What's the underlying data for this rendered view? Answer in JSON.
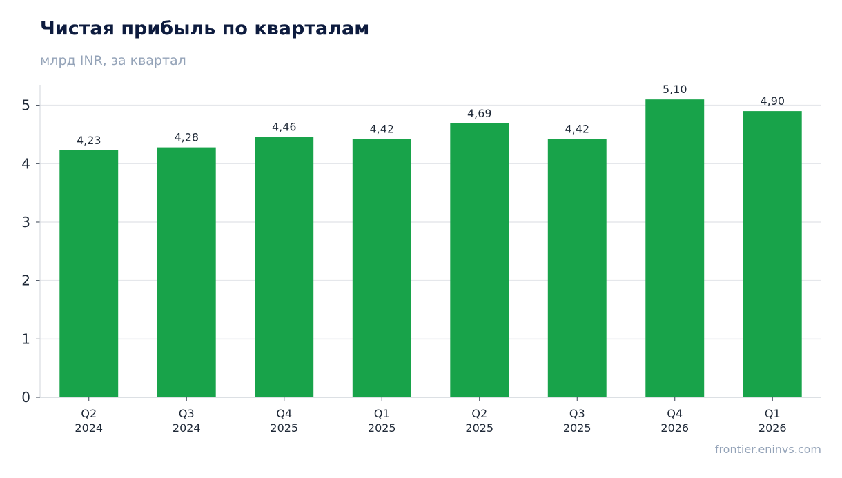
{
  "chart_data": {
    "type": "bar",
    "title": "Чистая прибыль по кварталам",
    "subtitle": "млрд INR, за квартал",
    "xlabel": "",
    "ylabel": "",
    "categories": [
      [
        "Q2",
        "2024"
      ],
      [
        "Q3",
        "2024"
      ],
      [
        "Q4",
        "2025"
      ],
      [
        "Q1",
        "2025"
      ],
      [
        "Q2",
        "2025"
      ],
      [
        "Q3",
        "2025"
      ],
      [
        "Q4",
        "2026"
      ],
      [
        "Q1",
        "2026"
      ]
    ],
    "values": [
      4.23,
      4.28,
      4.46,
      4.42,
      4.69,
      4.42,
      5.1,
      4.9
    ],
    "value_labels": [
      "4,23",
      "4,28",
      "4,46",
      "4,42",
      "4,69",
      "4,42",
      "5,10",
      "4,90"
    ],
    "yticks": [
      0,
      1,
      2,
      3,
      4,
      5
    ],
    "ylim": [
      0,
      5.35
    ],
    "grid": true,
    "bar_color": "#18a34a",
    "grid_color": "#e5e7eb",
    "text_color": "#1f2937"
  },
  "source": "frontier.eninvs.com"
}
